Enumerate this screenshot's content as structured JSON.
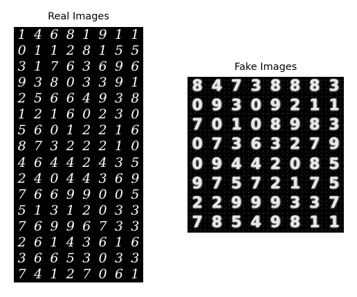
{
  "real": {
    "title": "Real Images",
    "rows": [
      [
        "1",
        "4",
        "6",
        "8",
        "1",
        "9",
        "1",
        "1"
      ],
      [
        "0",
        "1",
        "1",
        "2",
        "8",
        "1",
        "5",
        "5"
      ],
      [
        "3",
        "1",
        "7",
        "6",
        "3",
        "6",
        "9",
        "6"
      ],
      [
        "9",
        "3",
        "8",
        "0",
        "3",
        "3",
        "9",
        "1"
      ],
      [
        "2",
        "5",
        "6",
        "6",
        "4",
        "9",
        "3",
        "8"
      ],
      [
        "1",
        "2",
        "1",
        "6",
        "0",
        "2",
        "3",
        "0"
      ],
      [
        "5",
        "6",
        "0",
        "1",
        "2",
        "2",
        "1",
        "6"
      ],
      [
        "8",
        "7",
        "3",
        "2",
        "2",
        "2",
        "1",
        "0"
      ],
      [
        "4",
        "6",
        "4",
        "4",
        "2",
        "4",
        "3",
        "5"
      ],
      [
        "2",
        "4",
        "0",
        "4",
        "4",
        "3",
        "6",
        "9"
      ],
      [
        "7",
        "6",
        "6",
        "9",
        "9",
        "0",
        "0",
        "5"
      ],
      [
        "5",
        "1",
        "3",
        "1",
        "2",
        "0",
        "3",
        "3"
      ],
      [
        "7",
        "6",
        "9",
        "9",
        "6",
        "7",
        "3",
        "3"
      ],
      [
        "2",
        "6",
        "1",
        "4",
        "3",
        "6",
        "1",
        "6"
      ],
      [
        "3",
        "6",
        "6",
        "5",
        "3",
        "0",
        "3",
        "3"
      ],
      [
        "7",
        "4",
        "1",
        "2",
        "7",
        "0",
        "6",
        "1"
      ]
    ]
  },
  "fake": {
    "title": "Fake Images",
    "rows": [
      [
        "8",
        "4",
        "7",
        "3",
        "8",
        "8",
        "8",
        "3"
      ],
      [
        "0",
        "9",
        "3",
        "0",
        "9",
        "2",
        "1",
        "1"
      ],
      [
        "7",
        "0",
        "1",
        "0",
        "8",
        "9",
        "8",
        "3"
      ],
      [
        "0",
        "7",
        "3",
        "6",
        "3",
        "2",
        "7",
        "9"
      ],
      [
        "0",
        "9",
        "4",
        "4",
        "2",
        "0",
        "8",
        "5"
      ],
      [
        "9",
        "7",
        "5",
        "7",
        "2",
        "1",
        "7",
        "5"
      ],
      [
        "2",
        "2",
        "9",
        "9",
        "9",
        "3",
        "3",
        "7"
      ],
      [
        "7",
        "8",
        "5",
        "4",
        "9",
        "8",
        "1",
        "1"
      ]
    ]
  }
}
